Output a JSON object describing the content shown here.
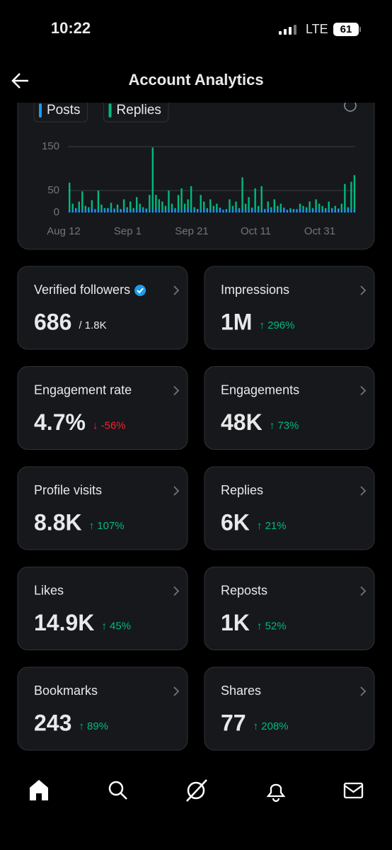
{
  "status_bar": {
    "time": "10:22",
    "network": "LTE",
    "battery": "61"
  },
  "header": {
    "title": "Account Analytics"
  },
  "chart_data": {
    "type": "bar",
    "stacked": true,
    "categories": [
      "Aug 12",
      null,
      null,
      null,
      null,
      null,
      null,
      null,
      null,
      null,
      null,
      null,
      null,
      null,
      null,
      null,
      null,
      null,
      null,
      null,
      "Sep 1",
      null,
      null,
      null,
      null,
      null,
      null,
      null,
      null,
      null,
      null,
      null,
      null,
      null,
      null,
      null,
      null,
      null,
      null,
      null,
      "Sep 21",
      null,
      null,
      null,
      null,
      null,
      null,
      null,
      null,
      null,
      null,
      null,
      null,
      null,
      null,
      null,
      null,
      null,
      null,
      null,
      "Oct 11",
      null,
      null,
      null,
      null,
      null,
      null,
      null,
      null,
      null,
      null,
      null,
      null,
      null,
      null,
      null,
      null,
      null,
      null,
      null,
      "Oct 31",
      null,
      null,
      null,
      null,
      null,
      null,
      null,
      null,
      null
    ],
    "series": [
      {
        "name": "Posts",
        "color": "#1d9bf0",
        "values": [
          8,
          6,
          10,
          7,
          9,
          5,
          8,
          11,
          6,
          7,
          8,
          6,
          10,
          7,
          9,
          5,
          8,
          11,
          6,
          7,
          8,
          6,
          10,
          7,
          9,
          5,
          8,
          11,
          6,
          7,
          8,
          6,
          10,
          7,
          9,
          5,
          8,
          11,
          6,
          7,
          8,
          6,
          10,
          7,
          9,
          5,
          8,
          11,
          6,
          7,
          8,
          6,
          10,
          7,
          9,
          5,
          8,
          11,
          6,
          7,
          8,
          6,
          10,
          7,
          9,
          5,
          8,
          11,
          6,
          7,
          8,
          6,
          10,
          7,
          9,
          5,
          8,
          11,
          6,
          7,
          8,
          6,
          10,
          7,
          9,
          5,
          8,
          11,
          6,
          7
        ]
      },
      {
        "name": "Replies",
        "color": "#00ba7c",
        "values": [
          60,
          14,
          0,
          18,
          39,
          10,
          4,
          17,
          2,
          43,
          10,
          4,
          0,
          15,
          0,
          13,
          0,
          19,
          6,
          18,
          2,
          29,
          10,
          5,
          0,
          35,
          140,
          29,
          24,
          18,
          7,
          44,
          10,
          3,
          31,
          50,
          12,
          19,
          54,
          5,
          0,
          34,
          15,
          3,
          21,
          10,
          12,
          0,
          0,
          1,
          22,
          9,
          15,
          3,
          71,
          15,
          27,
          0,
          49,
          8,
          52,
          2,
          15,
          5,
          21,
          10,
          12,
          0,
          0,
          3,
          0,
          2,
          10,
          8,
          3,
          20,
          2,
          19,
          14,
          8,
          2,
          19,
          0,
          8,
          0,
          15,
          57,
          1,
          64,
          78
        ]
      }
    ],
    "ylim": [
      0,
      150
    ],
    "yticks": [
      0,
      50,
      150
    ],
    "grid": true
  },
  "metrics": [
    {
      "label": "Verified followers",
      "value": "686",
      "sub": "/ 1.8K",
      "verified": true,
      "sub_color": "#e7e9ea"
    },
    {
      "label": "Impressions",
      "value": "1M",
      "sub": "↑ 296%",
      "sub_color": "#00ba7c"
    },
    {
      "label": "Engagement rate",
      "value": "4.7%",
      "sub": "↓ -56%",
      "sub_color": "#f4212e"
    },
    {
      "label": "Engagements",
      "value": "48K",
      "sub": "↑ 73%",
      "sub_color": "#00ba7c"
    },
    {
      "label": "Profile visits",
      "value": "8.8K",
      "sub": "↑ 107%",
      "sub_color": "#00ba7c"
    },
    {
      "label": "Replies",
      "value": "6K",
      "sub": "↑ 21%",
      "sub_color": "#00ba7c"
    },
    {
      "label": "Likes",
      "value": "14.9K",
      "sub": "↑ 45%",
      "sub_color": "#00ba7c"
    },
    {
      "label": "Reposts",
      "value": "1K",
      "sub": "↑ 52%",
      "sub_color": "#00ba7c"
    },
    {
      "label": "Bookmarks",
      "value": "243",
      "sub": "↑ 89%",
      "sub_color": "#00ba7c"
    },
    {
      "label": "Shares",
      "value": "77",
      "sub": "↑ 208%",
      "sub_color": "#00ba7c"
    }
  ]
}
